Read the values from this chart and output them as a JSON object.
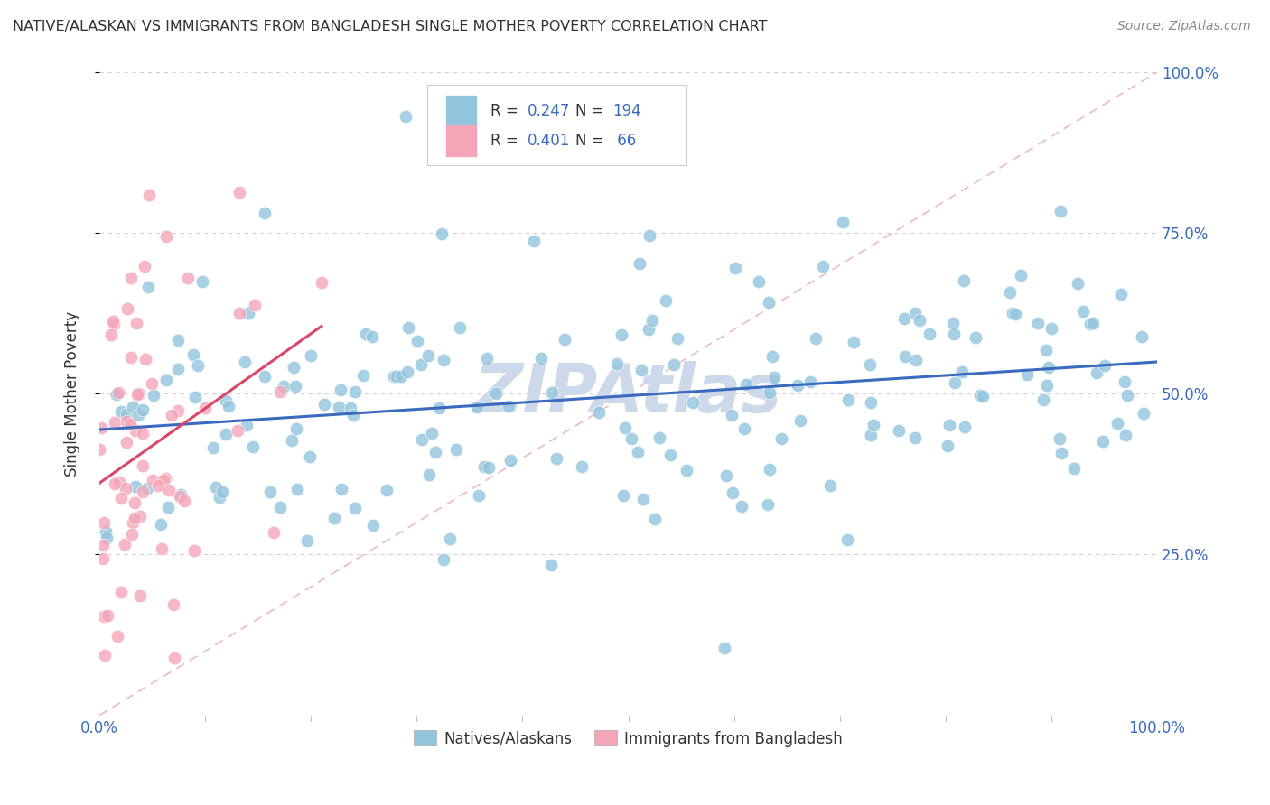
{
  "title": "NATIVE/ALASKAN VS IMMIGRANTS FROM BANGLADESH SINGLE MOTHER POVERTY CORRELATION CHART",
  "source": "Source: ZipAtlas.com",
  "ylabel": "Single Mother Poverty",
  "R_native": 0.247,
  "N_native": 194,
  "R_bangladesh": 0.401,
  "N_bangladesh": 66,
  "color_native": "#92c5de",
  "color_bangladesh": "#f4a6b8",
  "trendline_native": "#3a6bbf",
  "trendline_bangladesh": "#d9476a",
  "diagonal_color": "#e8b4b8",
  "background_color": "#ffffff",
  "watermark_color": "#ccd9ea",
  "grid_color": "#cccccc",
  "title_color": "#333333",
  "source_color": "#888888",
  "axis_label_color": "#3a6bbf",
  "legend_r_n_color": "#3a6bbf",
  "legend_text_color": "#333333"
}
